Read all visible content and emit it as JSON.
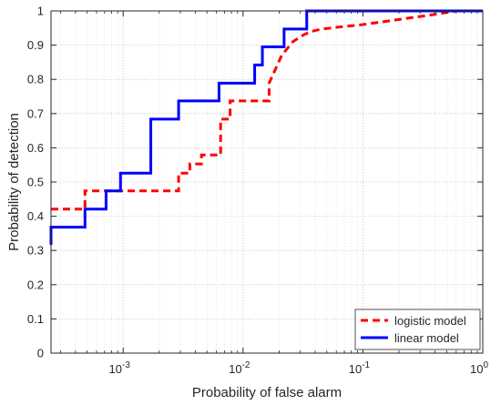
{
  "chart_data": {
    "type": "line",
    "xlabel": "Probability of false alarm",
    "ylabel": "Probability of detection",
    "xscale": "log",
    "xlim": [
      0.00025,
      1
    ],
    "ylim": [
      0,
      1
    ],
    "grid": "on",
    "legend_position": "bottom-right",
    "x_ticks": [
      {
        "value": 0.001,
        "base": "10",
        "exp": "-3"
      },
      {
        "value": 0.01,
        "base": "10",
        "exp": "-2"
      },
      {
        "value": 0.1,
        "base": "10",
        "exp": "-1"
      },
      {
        "value": 1,
        "base": "10",
        "exp": "0"
      }
    ],
    "y_ticks": [
      "0",
      "0.1",
      "0.2",
      "0.3",
      "0.4",
      "0.5",
      "0.6",
      "0.7",
      "0.8",
      "0.9",
      "1"
    ],
    "series": [
      {
        "name": "logistic model",
        "color": "#ff0000",
        "style": "dashed",
        "x": [
          0.00025,
          0.00048,
          0.00048,
          0.0029,
          0.0029,
          0.0036,
          0.0036,
          0.0045,
          0.0045,
          0.0065,
          0.0065,
          0.0078,
          0.0078,
          0.0165,
          0.0165,
          0.021,
          0.026,
          0.032,
          0.037,
          0.045,
          0.06,
          0.1,
          0.2,
          0.4,
          0.6,
          1
        ],
        "y": [
          0.421,
          0.421,
          0.474,
          0.474,
          0.526,
          0.526,
          0.553,
          0.553,
          0.579,
          0.579,
          0.684,
          0.684,
          0.737,
          0.737,
          0.789,
          0.87,
          0.91,
          0.93,
          0.94,
          0.947,
          0.952,
          0.96,
          0.975,
          0.99,
          1.0,
          1.0
        ]
      },
      {
        "name": "linear model",
        "color": "#0000ff",
        "style": "solid",
        "x": [
          0.00025,
          0.00025,
          0.00048,
          0.00048,
          0.00072,
          0.00072,
          0.00095,
          0.00095,
          0.0017,
          0.0017,
          0.0029,
          0.0029,
          0.0063,
          0.0063,
          0.0125,
          0.0125,
          0.0145,
          0.0145,
          0.022,
          0.022,
          0.034,
          0.034,
          1
        ],
        "y": [
          0.316,
          0.368,
          0.368,
          0.421,
          0.421,
          0.474,
          0.474,
          0.526,
          0.526,
          0.684,
          0.684,
          0.737,
          0.737,
          0.789,
          0.789,
          0.842,
          0.842,
          0.895,
          0.895,
          0.947,
          0.947,
          1.0,
          1.0
        ]
      }
    ]
  }
}
